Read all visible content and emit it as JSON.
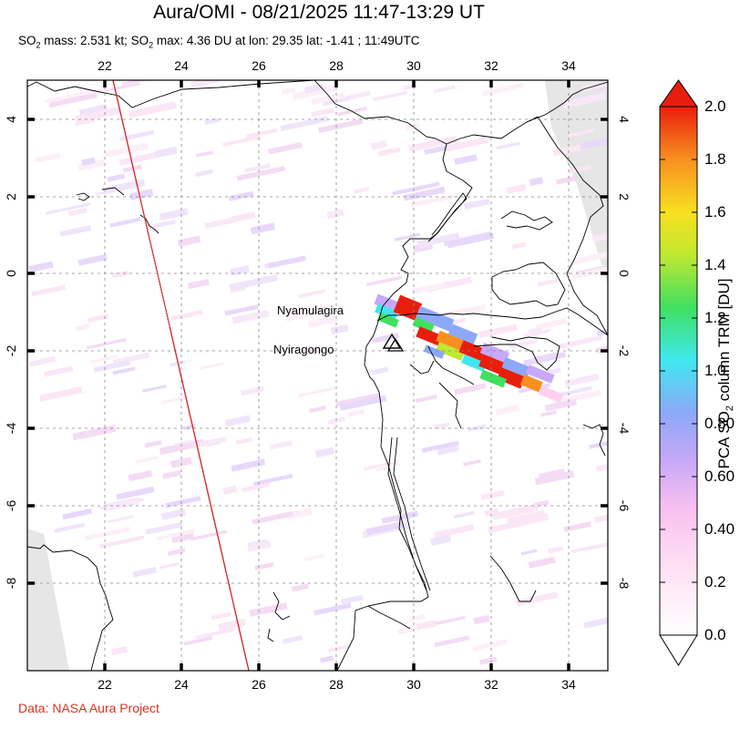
{
  "title": "Aura/OMI - 08/21/2025 11:47-13:29 UT",
  "subtitle": {
    "p1": "SO",
    "p2": "2",
    "p3": " mass: 2.531 kt; SO",
    "p4": "2",
    "p5": " max: 4.36 DU at lon: 29.35 lat: -1.41 ; 11:49UTC"
  },
  "credit": "Data: NASA Aura Project",
  "map": {
    "lon_ticks": [
      "22",
      "24",
      "26",
      "28",
      "30",
      "32",
      "34"
    ],
    "lat_ticks": [
      "4",
      "2",
      "0",
      "-2",
      "-4",
      "-6",
      "-8"
    ],
    "labels": {
      "nyamulagira": "Nyamulagira",
      "nyiragongo": "Nyiragongo"
    },
    "colors": {
      "border": "#000000",
      "grid": "#888888",
      "orbit_line": "#d42020",
      "no_data": "#e6e6e6"
    }
  },
  "colorbar": {
    "label_prefix": "PCA SO",
    "label_sub": "2",
    "label_suffix": " column TRM [DU]",
    "ticks": [
      "2.0",
      "1.8",
      "1.6",
      "1.4",
      "1.2",
      "1.0",
      "0.80",
      "0.60",
      "0.40",
      "0.2",
      "0.0"
    ],
    "min": 0.0,
    "max": 2.0,
    "colors": [
      "#ffffff",
      "#ffd0f0",
      "#c8a8f8",
      "#8ca8f8",
      "#40e8f0",
      "#40e060",
      "#c0e830",
      "#f8e020",
      "#f89020",
      "#e81e0c"
    ]
  }
}
